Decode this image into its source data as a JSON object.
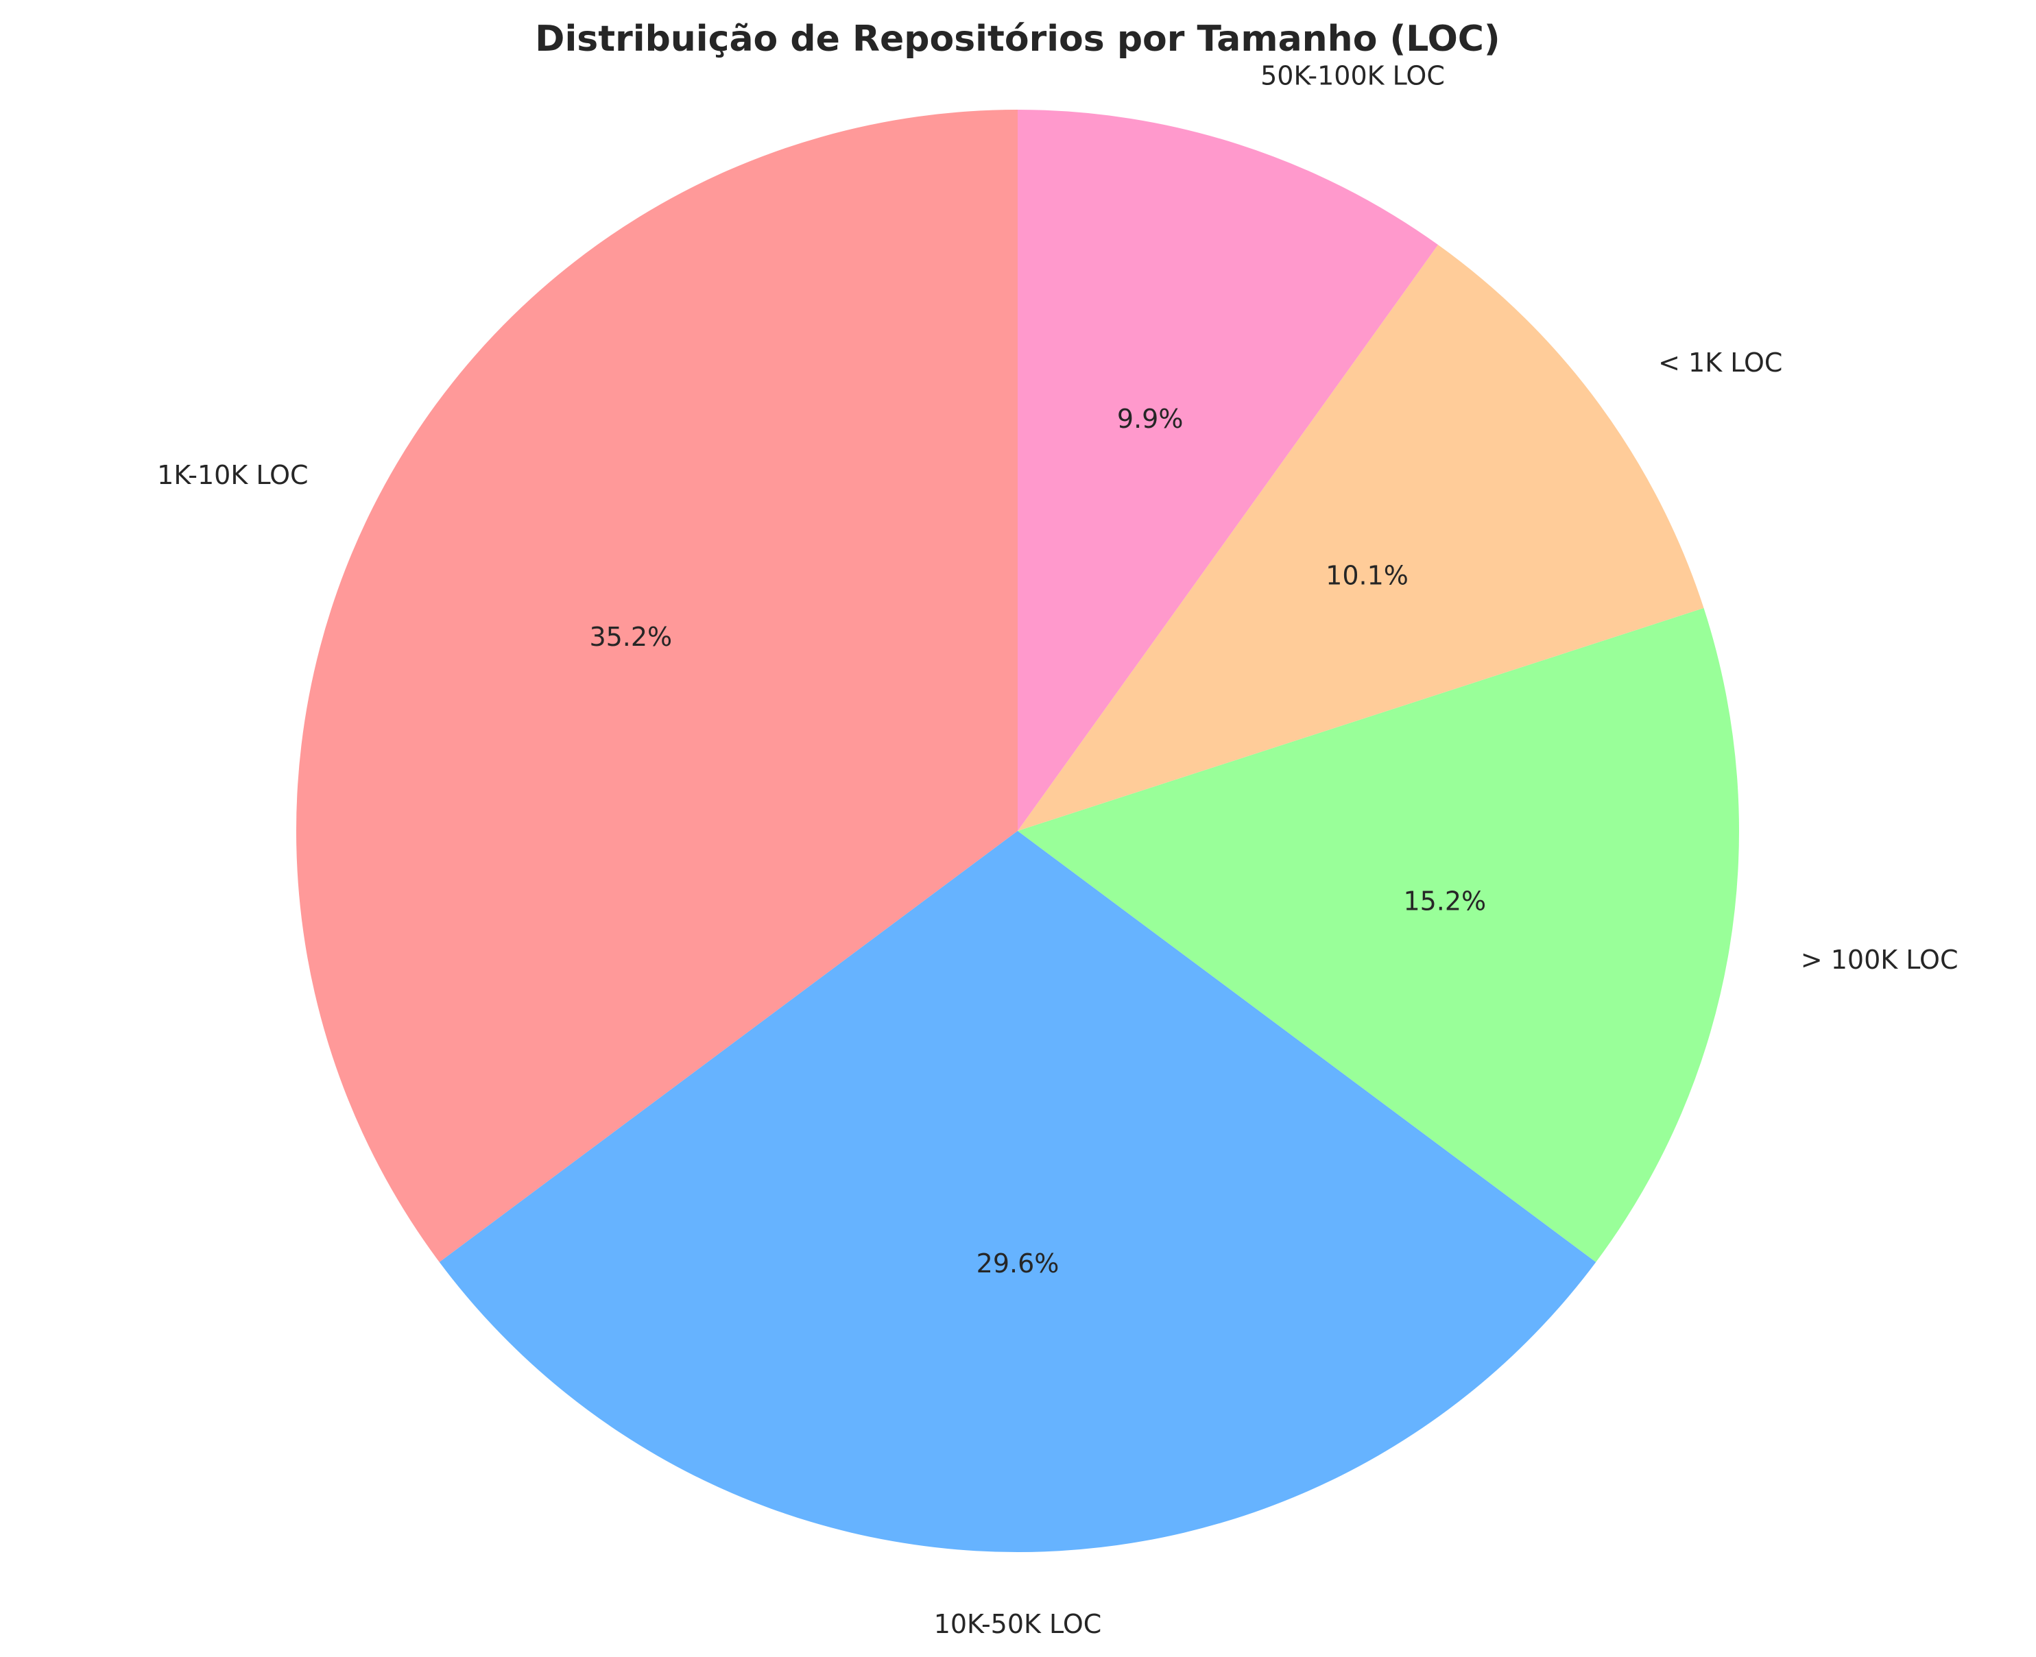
{
  "chart_data": {
    "type": "pie",
    "title": "Distribuição de Repositórios por Tamanho (LOC)",
    "start_angle_deg": 90,
    "direction": "counterclockwise",
    "slices": [
      {
        "label": "1K-10K LOC",
        "value": 35.2,
        "pct_label": "35.2%",
        "color": "#FF9999"
      },
      {
        "label": "10K-50K LOC",
        "value": 29.6,
        "pct_label": "29.6%",
        "color": "#66B3FF"
      },
      {
        "label": "> 100K LOC",
        "value": 15.2,
        "pct_label": "15.2%",
        "color": "#99FF99"
      },
      {
        "label": "< 1K LOC",
        "value": 10.1,
        "pct_label": "10.1%",
        "color": "#FFCC99"
      },
      {
        "label": "50K-100K LOC",
        "value": 9.9,
        "pct_label": "9.9%",
        "color": "#FF99CC"
      }
    ]
  }
}
